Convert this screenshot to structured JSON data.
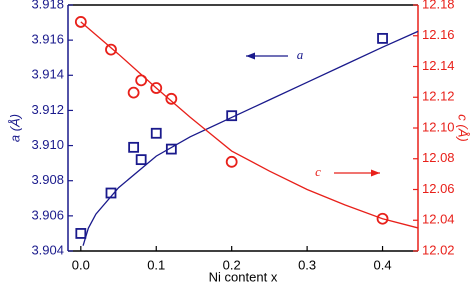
{
  "chart_data": {
    "type": "scatter",
    "x_label": "Ni content x",
    "y_label": "a (Å)",
    "y2_label": "c (Å)",
    "xlim": [
      -0.017,
      0.447
    ],
    "xticks": [
      {
        "value": 0,
        "label": "0.0"
      },
      0.1,
      0.2,
      0.3,
      0.4
    ],
    "ylim": [
      3.904,
      3.918
    ],
    "yticks": [
      3.904,
      3.906,
      3.908,
      {
        "value": 3.91,
        "label": "3.910"
      },
      3.912,
      3.914,
      3.916,
      3.918
    ],
    "y2lim": [
      12.02,
      12.18
    ],
    "y2ticks": [
      12.02,
      12.04,
      12.06,
      12.08,
      {
        "value": 12.1,
        "label": "12.10"
      },
      12.12,
      12.14,
      12.16,
      12.18
    ],
    "series": [
      {
        "color": "#1a1a8c",
        "marker": "square",
        "x": [
          0,
          0.04,
          0.07,
          0.08,
          0.1,
          0.12,
          0.2,
          0.4
        ],
        "values": [
          3.905,
          3.9073,
          3.9099,
          3.9092,
          3.9107,
          3.9098,
          3.9117,
          3.9161
        ]
      },
      {
        "color": "#e8201a",
        "marker": "circle",
        "axis": "y2",
        "x": [
          0,
          0.04,
          0.07,
          0.08,
          0.1,
          0.12,
          0.2,
          0.4
        ],
        "values": [
          12.169,
          12.151,
          12.123,
          12.131,
          12.126,
          12.119,
          12.078,
          12.041
        ]
      },
      {
        "color": "#1a1a8c",
        "marker": "line",
        "x": [
          0.003,
          0.01,
          0.02,
          0.05,
          0.1,
          0.145,
          0.2,
          0.25,
          0.3,
          0.35,
          0.4,
          0.447
        ],
        "values": [
          3.9043,
          3.9053,
          3.9061,
          3.9076,
          3.9094,
          3.9105,
          3.9116,
          3.9126,
          3.9136,
          3.9146,
          3.9156,
          3.9165
        ]
      },
      {
        "color": "#e8201a",
        "marker": "line",
        "axis": "y2",
        "x": [
          0,
          0.05,
          0.1,
          0.145,
          0.2,
          0.25,
          0.3,
          0.35,
          0.4,
          0.447
        ],
        "values": [
          12.169,
          12.148,
          12.126,
          12.107,
          12.085,
          12.072,
          12.06,
          12.05,
          12.041,
          12.035
        ]
      }
    ],
    "annotations": [
      {
        "text": "a",
        "color": "#1a1a8c"
      },
      {
        "text": "c",
        "color": "#e8201a"
      }
    ]
  }
}
